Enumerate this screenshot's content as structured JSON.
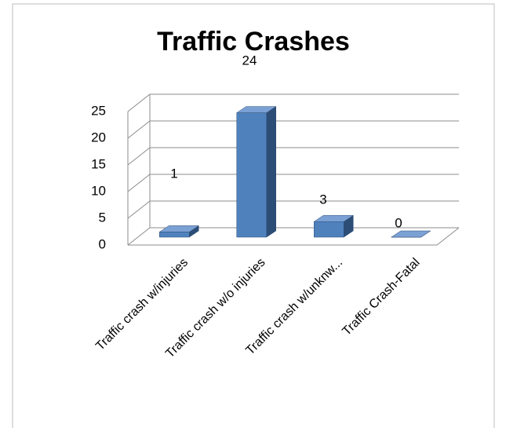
{
  "chart_data": {
    "type": "bar3d",
    "title": "Traffic Crashes",
    "categories": [
      "Traffic crash w/injuries",
      "Traffic crash w/o injuries",
      "Traffic crash w/unknw...",
      "Traffic Crash-Fatal"
    ],
    "values": [
      1,
      24,
      3,
      0
    ],
    "color": "#4f81bd",
    "ylim": [
      0,
      25
    ],
    "yticks": [
      0,
      5,
      10,
      15,
      20,
      25
    ],
    "grid": true
  }
}
